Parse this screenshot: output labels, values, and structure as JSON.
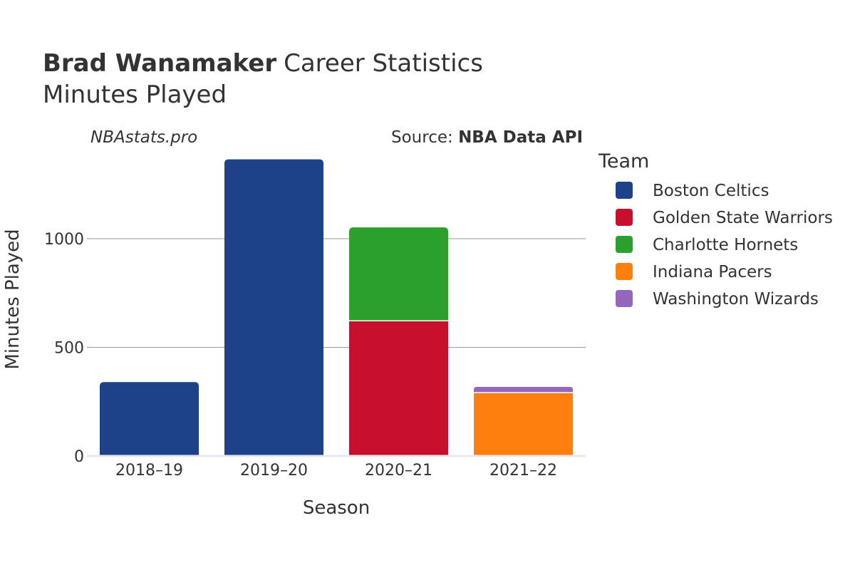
{
  "header": {
    "player_name": "Brad Wanamaker",
    "title_rest": "Career Statistics",
    "subtitle": "Minutes Played"
  },
  "credits": {
    "site": "NBAstats.pro",
    "source_prefix": "Source: ",
    "source_name": "NBA Data API"
  },
  "legend": {
    "title": "Team"
  },
  "chart_data": {
    "type": "bar",
    "stacked": true,
    "categories": [
      "2018–19",
      "2019–20",
      "2020–21",
      "2021–22"
    ],
    "series": [
      {
        "name": "Boston Celtics",
        "color": "#1d428a",
        "values": [
          340,
          1365,
          0,
          0
        ]
      },
      {
        "name": "Golden State Warriors",
        "color": "#c8102e",
        "values": [
          0,
          0,
          622,
          0
        ]
      },
      {
        "name": "Charlotte Hornets",
        "color": "#2ca02c",
        "values": [
          0,
          0,
          430,
          0
        ]
      },
      {
        "name": "Indiana Pacers",
        "color": "#ff7f0e",
        "values": [
          0,
          0,
          0,
          292
        ]
      },
      {
        "name": "Washington Wizards",
        "color": "#9467bd",
        "values": [
          0,
          0,
          0,
          26
        ]
      }
    ],
    "xlabel": "Season",
    "ylabel": "Minutes Played",
    "ylim": [
      0,
      1400
    ],
    "yticks": [
      0,
      500,
      1000
    ],
    "grid": true,
    "legend_position": "right"
  }
}
